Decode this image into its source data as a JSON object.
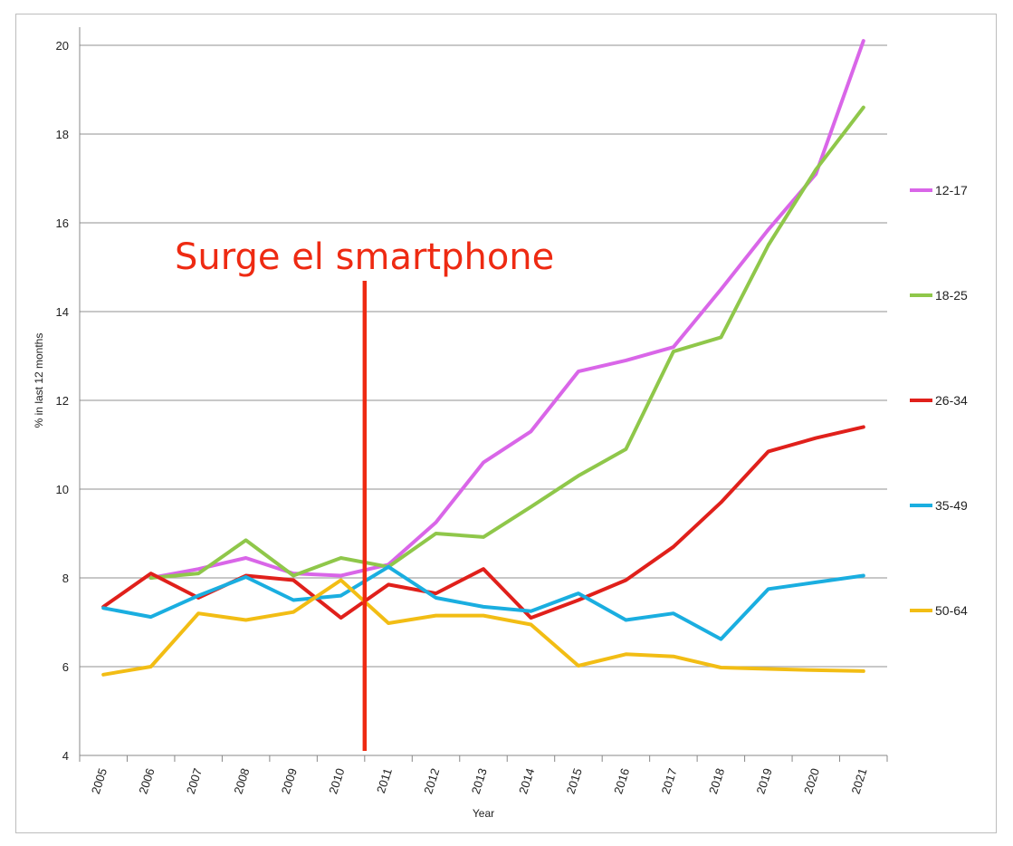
{
  "chart_data": {
    "type": "line",
    "xlabel": "Year",
    "ylabel": "% in last 12 months",
    "ylim": [
      4,
      20
    ],
    "yticks": [
      4,
      6,
      8,
      10,
      12,
      14,
      16,
      18,
      20
    ],
    "grid": true,
    "legend_position": "right",
    "x": [
      "2005",
      "2006",
      "2007",
      "2008",
      "2009",
      "2010",
      "2011",
      "2012",
      "2013",
      "2014",
      "2015",
      "2016",
      "2017",
      "2018",
      "2019",
      "2020",
      "2021"
    ],
    "series": [
      {
        "name": "12-17",
        "color": "#d966e8",
        "values": [
          null,
          8.0,
          8.2,
          8.45,
          8.1,
          8.05,
          8.3,
          9.25,
          10.6,
          11.3,
          12.65,
          12.9,
          13.2,
          14.5,
          15.85,
          17.1,
          20.1
        ]
      },
      {
        "name": "18-25",
        "color": "#8fc74a",
        "values": [
          null,
          8.0,
          8.1,
          8.85,
          8.05,
          8.45,
          8.25,
          9.0,
          8.92,
          9.6,
          10.3,
          10.9,
          13.1,
          13.42,
          15.5,
          17.2,
          18.6
        ]
      },
      {
        "name": "26-34",
        "color": "#e0201b",
        "values": [
          7.35,
          8.1,
          7.55,
          8.05,
          7.95,
          7.1,
          7.85,
          7.65,
          8.2,
          7.1,
          7.5,
          7.95,
          8.7,
          9.7,
          10.85,
          11.15,
          11.4
        ]
      },
      {
        "name": "35-49",
        "color": "#1aaee0",
        "values": [
          7.32,
          7.12,
          7.6,
          8.02,
          7.5,
          7.6,
          8.25,
          7.55,
          7.35,
          7.25,
          7.65,
          7.05,
          7.2,
          6.62,
          7.75,
          7.9,
          8.05
        ]
      },
      {
        "name": "50-64",
        "color": "#f2bd14",
        "values": [
          5.82,
          6.0,
          7.2,
          7.05,
          7.23,
          7.95,
          6.98,
          7.15,
          7.15,
          6.95,
          6.02,
          6.28,
          6.23,
          5.98,
          5.95,
          5.92,
          5.9
        ]
      }
    ],
    "annotation": {
      "text": "Surge el smartphone",
      "color": "#ee2a12",
      "at_x": 2010.5
    }
  }
}
